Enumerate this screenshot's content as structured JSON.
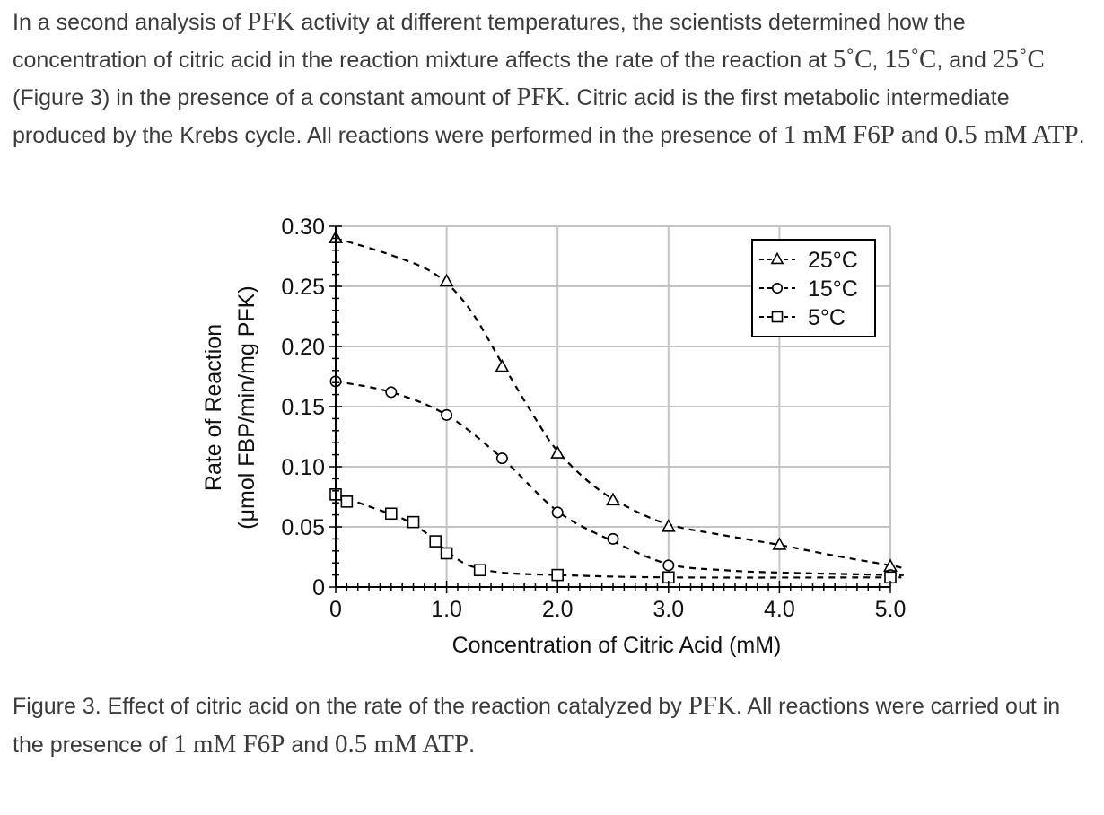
{
  "intro": {
    "t1": "In a second analysis of ",
    "m1": "PFK",
    "t2": " activity at different temperatures, the scientists determined how the concentration of citric acid in the reaction mixture affects the rate of the reaction at ",
    "m2": "5˚C",
    "t3": ", ",
    "m3": "15˚C",
    "t4": ", and ",
    "m4": "25˚C",
    "t5": " (Figure 3) in the presence of a constant amount of ",
    "m5": "PFK",
    "t6": ". Citric acid is the first metabolic intermediate produced by the Krebs cycle. All reactions were performed in the presence of ",
    "m6": "1 mM F6P",
    "t7": " and ",
    "m7": "0.5 mM ATP",
    "t8": "."
  },
  "caption": {
    "t1": "Figure 3. Effect of citric acid on the rate of the reaction catalyzed by ",
    "m1": "PFK",
    "t2": ". All reactions were carried out in the presence of ",
    "m2": "1 mM F6P",
    "t3": " and ",
    "m3": "0.5 mM ATP",
    "t4": "."
  },
  "chart_data": {
    "type": "scatter",
    "title": "",
    "xlabel": "Concentration of Citric Acid (mM)",
    "ylabel_line1": "Rate of Reaction",
    "ylabel_line2": "(μmol FBP/min/mg PFK)",
    "xlim": [
      0,
      5
    ],
    "ylim": [
      0,
      0.3
    ],
    "x_ticks": [
      0,
      1,
      2,
      3,
      4,
      5
    ],
    "x_tick_labels": [
      "0",
      "1.0",
      "2.0",
      "3.0",
      "4.0",
      "5.0"
    ],
    "y_ticks": [
      0,
      0.05,
      0.1,
      0.15,
      0.2,
      0.25,
      0.3
    ],
    "y_tick_labels": [
      "0",
      "0.05",
      "0.10",
      "0.15",
      "0.20",
      "0.25",
      "0.30"
    ],
    "grid": true,
    "legend_position": "top-right",
    "series": [
      {
        "name": "25°C",
        "marker": "triangle",
        "points": [
          [
            0,
            0.29
          ],
          [
            1.0,
            0.254
          ],
          [
            1.5,
            0.183
          ],
          [
            2.0,
            0.111
          ],
          [
            2.5,
            0.072
          ],
          [
            3.0,
            0.05
          ],
          [
            4.0,
            0.035
          ],
          [
            5.0,
            0.017
          ]
        ],
        "curve": [
          [
            0,
            0.29
          ],
          [
            0.5,
            0.276
          ],
          [
            0.9,
            0.26
          ],
          [
            1.2,
            0.232
          ],
          [
            1.5,
            0.186
          ],
          [
            1.8,
            0.14
          ],
          [
            2.0,
            0.113
          ],
          [
            2.3,
            0.086
          ],
          [
            2.6,
            0.068
          ],
          [
            3.0,
            0.052
          ],
          [
            3.5,
            0.043
          ],
          [
            4.0,
            0.035
          ],
          [
            4.5,
            0.026
          ],
          [
            5.0,
            0.018
          ],
          [
            5.1,
            0.016
          ]
        ]
      },
      {
        "name": "15°C",
        "marker": "circle",
        "points": [
          [
            0,
            0.171
          ],
          [
            0.5,
            0.162
          ],
          [
            1.0,
            0.143
          ],
          [
            1.5,
            0.107
          ],
          [
            2.0,
            0.062
          ],
          [
            2.5,
            0.04
          ],
          [
            3.0,
            0.018
          ],
          [
            5.0,
            0.01
          ]
        ],
        "curve": [
          [
            0,
            0.171
          ],
          [
            0.5,
            0.162
          ],
          [
            1.0,
            0.143
          ],
          [
            1.5,
            0.107
          ],
          [
            2.0,
            0.063
          ],
          [
            2.5,
            0.038
          ],
          [
            3.0,
            0.019
          ],
          [
            3.5,
            0.014
          ],
          [
            4.0,
            0.012
          ],
          [
            5.0,
            0.01
          ],
          [
            5.1,
            0.01
          ]
        ]
      },
      {
        "name": "5°C",
        "marker": "square",
        "points": [
          [
            0,
            0.077
          ],
          [
            0.1,
            0.071
          ],
          [
            0.5,
            0.061
          ],
          [
            0.7,
            0.054
          ],
          [
            0.9,
            0.038
          ],
          [
            1.0,
            0.028
          ],
          [
            1.3,
            0.014
          ],
          [
            2.0,
            0.01
          ],
          [
            3.0,
            0.008
          ],
          [
            5.0,
            0.008
          ]
        ],
        "curve": [
          [
            0,
            0.077
          ],
          [
            0.3,
            0.067
          ],
          [
            0.6,
            0.057
          ],
          [
            0.8,
            0.046
          ],
          [
            1.0,
            0.03
          ],
          [
            1.2,
            0.018
          ],
          [
            1.5,
            0.012
          ],
          [
            2.0,
            0.01
          ],
          [
            3.0,
            0.008
          ],
          [
            5.1,
            0.008
          ]
        ]
      }
    ]
  }
}
